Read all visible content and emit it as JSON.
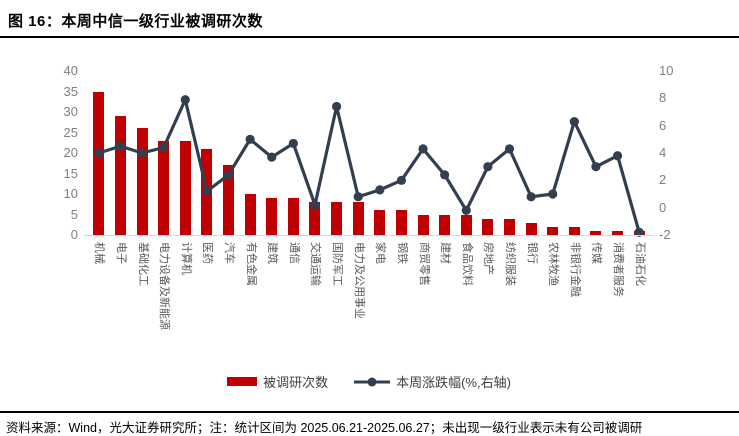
{
  "title": "图 16：本周中信一级行业被调研次数",
  "legend": {
    "bars_label": "被调研次数",
    "line_label": "本周涨跌幅(%,右轴)"
  },
  "footer": {
    "source_note": "资料来源：Wind，光大证券研究所；注：统计区间为 2025.06.21-2025.06.27；未出现一级行业表示未有公司被调研"
  },
  "colors": {
    "bar": "#c00000",
    "line": "#333f50",
    "axis_text": "#7f7f7f",
    "category_text": "#595959",
    "baseline": "#d9d9d9"
  },
  "chart_data": {
    "type": "bar",
    "subtype": "bar-line-combo",
    "categories": [
      "机械",
      "电子",
      "基础化工",
      "电力设备及新能源",
      "计算机",
      "医药",
      "汽车",
      "有色金属",
      "建筑",
      "通信",
      "交通运输",
      "国防军工",
      "电力及公用事业",
      "家电",
      "钢铁",
      "商贸零售",
      "建材",
      "食品饮料",
      "房地产",
      "纺织服装",
      "银行",
      "农林牧渔",
      "非银行金融",
      "传媒",
      "消费者服务",
      "石油石化"
    ],
    "series": [
      {
        "name": "被调研次数",
        "type": "bar",
        "axis": "left",
        "values": [
          35,
          29,
          26,
          23,
          23,
          21,
          17,
          10,
          9,
          9,
          8,
          8,
          8,
          6,
          6,
          5,
          5,
          5,
          4,
          4,
          3,
          2,
          2,
          1,
          1,
          1
        ]
      },
      {
        "name": "本周涨跌幅(%,右轴)",
        "type": "line",
        "axis": "right",
        "values": [
          4.0,
          4.5,
          4.0,
          4.4,
          7.9,
          1.2,
          2.4,
          5.0,
          3.7,
          4.7,
          0.2,
          7.4,
          0.8,
          1.3,
          2.0,
          4.3,
          2.4,
          -0.2,
          3.0,
          4.3,
          0.8,
          1.0,
          6.3,
          3.0,
          3.8,
          -1.8
        ]
      }
    ],
    "left_axis": {
      "min": 0,
      "max": 40,
      "ticks": [
        0,
        5,
        10,
        15,
        20,
        25,
        30,
        35,
        40
      ]
    },
    "right_axis": {
      "min": -2,
      "max": 10,
      "ticks": [
        -2,
        0,
        2,
        4,
        6,
        8,
        10
      ]
    },
    "grid": false,
    "legend_position": "bottom"
  }
}
